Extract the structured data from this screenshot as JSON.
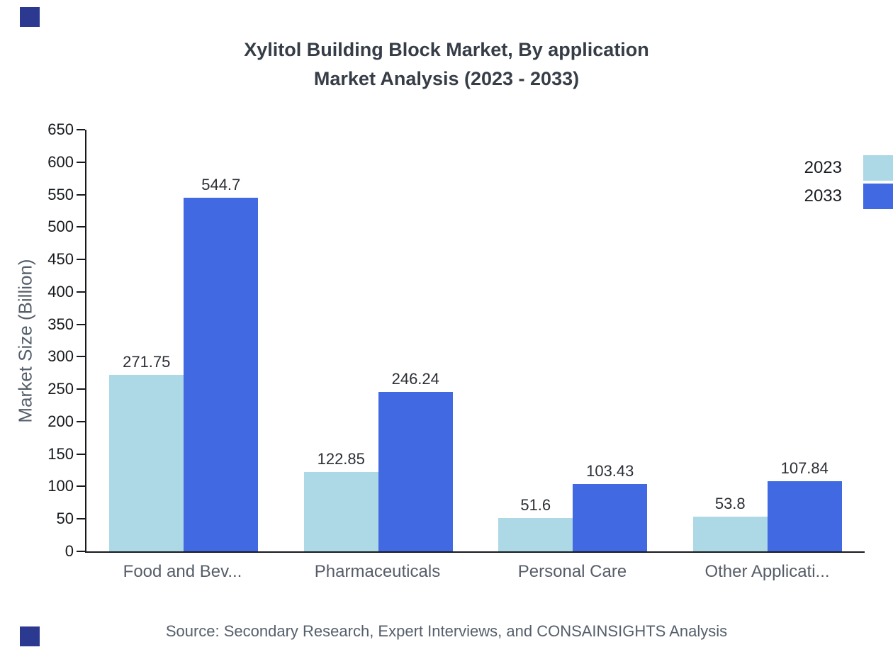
{
  "page": {
    "brand_color": "#2b3990",
    "background": "#ffffff"
  },
  "chart_data": {
    "type": "bar",
    "title": "Xylitol Building Block Market, By application",
    "subtitle": "Market Analysis (2023 - 2033)",
    "ylabel": "Market Size (Billion)",
    "xlabel": "",
    "categories": [
      "Food and Bev...",
      "Pharmaceuticals",
      "Personal Care",
      "Other Applicati..."
    ],
    "series": [
      {
        "name": "2023",
        "color": "#add8e6",
        "values": [
          271.75,
          122.85,
          51.6,
          53.8
        ]
      },
      {
        "name": "2033",
        "color": "#4169e1",
        "values": [
          544.7,
          246.24,
          103.43,
          107.84
        ]
      }
    ],
    "value_labels": [
      "271.75",
      "544.7",
      "122.85",
      "246.24",
      "51.6",
      "103.43",
      "53.8",
      "107.84"
    ],
    "ylim": [
      0,
      650
    ],
    "ytick_step": 50,
    "grid": false,
    "legend_position": "top-right"
  },
  "footer": {
    "source": "Source: Secondary Research, Expert Interviews, and CONSAINSIGHTS Analysis"
  }
}
